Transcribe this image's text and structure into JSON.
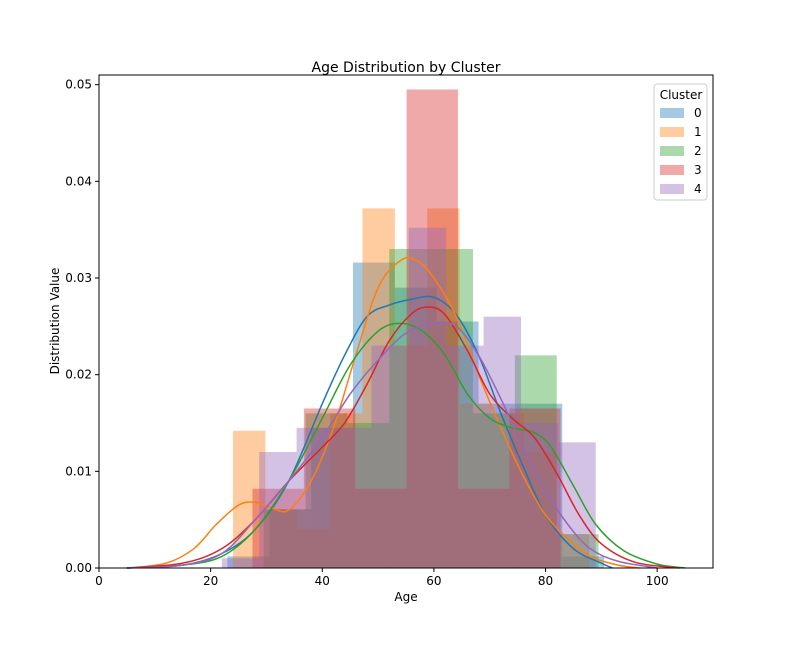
{
  "chart_data": {
    "type": "histogram",
    "title": "Age Distribution by Cluster",
    "xlabel": "Age",
    "ylabel": "Distribution Value",
    "xlim": [
      0,
      110
    ],
    "ylim": [
      0,
      0.051
    ],
    "xticks": [
      "0",
      "20",
      "40",
      "60",
      "80",
      "100"
    ],
    "yticks": [
      "0.00",
      "0.01",
      "0.02",
      "0.03",
      "0.04",
      "0.05"
    ],
    "legend": {
      "title": "Cluster",
      "position": "top-right"
    },
    "grid": false,
    "series": [
      {
        "name": "0",
        "color": "#1f77b4",
        "bins": [
          {
            "x0": 23,
            "x1": 30.5,
            "y": 0.0012
          },
          {
            "x0": 30.5,
            "x1": 38,
            "y": 0.0061
          },
          {
            "x0": 38,
            "x1": 45.5,
            "y": 0.0145
          },
          {
            "x0": 45.5,
            "x1": 53,
            "y": 0.0316
          },
          {
            "x0": 53,
            "x1": 60.5,
            "y": 0.029
          },
          {
            "x0": 60.5,
            "x1": 68,
            "y": 0.0255
          },
          {
            "x0": 68,
            "x1": 75.5,
            "y": 0.017
          },
          {
            "x0": 75.5,
            "x1": 83,
            "y": 0.017
          },
          {
            "x0": 83,
            "x1": 90.5,
            "y": 0.0012
          }
        ],
        "kde": [
          [
            5,
            0
          ],
          [
            15,
            0.0003
          ],
          [
            22,
            0.0015
          ],
          [
            28,
            0.004
          ],
          [
            34,
            0.009
          ],
          [
            40,
            0.017
          ],
          [
            44,
            0.022
          ],
          [
            48,
            0.026
          ],
          [
            52,
            0.0272
          ],
          [
            56,
            0.0278
          ],
          [
            60,
            0.028
          ],
          [
            64,
            0.0262
          ],
          [
            68,
            0.022
          ],
          [
            72,
            0.016
          ],
          [
            76,
            0.0105
          ],
          [
            80,
            0.0055
          ],
          [
            85,
            0.002
          ],
          [
            90,
            0.0005
          ],
          [
            92,
            0
          ]
        ]
      },
      {
        "name": "1",
        "color": "#ff7f0e",
        "bins": [
          {
            "x0": 24,
            "x1": 29.8,
            "y": 0.0142
          },
          {
            "x0": 29.8,
            "x1": 35.6,
            "y": 0.0061
          },
          {
            "x0": 35.6,
            "x1": 41.4,
            "y": 0.004
          },
          {
            "x0": 41.4,
            "x1": 47.2,
            "y": 0.016
          },
          {
            "x0": 47.2,
            "x1": 53,
            "y": 0.0372
          },
          {
            "x0": 53,
            "x1": 58.8,
            "y": 0.023
          },
          {
            "x0": 58.8,
            "x1": 64.6,
            "y": 0.0372
          },
          {
            "x0": 64.6,
            "x1": 70.4,
            "y": 0.017
          },
          {
            "x0": 70.4,
            "x1": 76.2,
            "y": 0.016
          },
          {
            "x0": 76.2,
            "x1": 82,
            "y": 0.012
          },
          {
            "x0": 82,
            "x1": 87.8,
            "y": 0.0035
          }
        ],
        "kde": [
          [
            5,
            0
          ],
          [
            12,
            0.0005
          ],
          [
            17,
            0.002
          ],
          [
            21,
            0.0045
          ],
          [
            25,
            0.0065
          ],
          [
            28,
            0.0068
          ],
          [
            31,
            0.0062
          ],
          [
            34,
            0.006
          ],
          [
            38,
            0.009
          ],
          [
            42,
            0.0145
          ],
          [
            46,
            0.022
          ],
          [
            50,
            0.029
          ],
          [
            54,
            0.0318
          ],
          [
            57,
            0.0318
          ],
          [
            60,
            0.03
          ],
          [
            64,
            0.026
          ],
          [
            68,
            0.02
          ],
          [
            72,
            0.0145
          ],
          [
            76,
            0.0095
          ],
          [
            80,
            0.0055
          ],
          [
            84,
            0.003
          ],
          [
            88,
            0.0012
          ],
          [
            93,
            0.0003
          ],
          [
            97,
            0
          ]
        ]
      },
      {
        "name": "2",
        "color": "#2ca02c",
        "bins": [
          {
            "x0": 29.5,
            "x1": 37,
            "y": 0.006
          },
          {
            "x0": 37,
            "x1": 44.5,
            "y": 0.016
          },
          {
            "x0": 44.5,
            "x1": 52,
            "y": 0.015
          },
          {
            "x0": 52,
            "x1": 59.5,
            "y": 0.033
          },
          {
            "x0": 59.5,
            "x1": 67,
            "y": 0.033
          },
          {
            "x0": 67,
            "x1": 74.5,
            "y": 0.016
          },
          {
            "x0": 74.5,
            "x1": 82,
            "y": 0.022
          },
          {
            "x0": 82,
            "x1": 89.5,
            "y": 0.0035
          }
        ],
        "kde": [
          [
            5,
            0
          ],
          [
            15,
            0.0003
          ],
          [
            22,
            0.0012
          ],
          [
            28,
            0.004
          ],
          [
            34,
            0.009
          ],
          [
            40,
            0.0155
          ],
          [
            45,
            0.021
          ],
          [
            50,
            0.0245
          ],
          [
            54,
            0.0253
          ],
          [
            58,
            0.0245
          ],
          [
            62,
            0.022
          ],
          [
            66,
            0.018
          ],
          [
            70,
            0.0155
          ],
          [
            74,
            0.0145
          ],
          [
            78,
            0.014
          ],
          [
            81,
            0.0125
          ],
          [
            85,
            0.0085
          ],
          [
            89,
            0.0045
          ],
          [
            94,
            0.0018
          ],
          [
            100,
            0.0004
          ],
          [
            105,
            0
          ]
        ]
      },
      {
        "name": "3",
        "color": "#d62728",
        "bins": [
          {
            "x0": 27.5,
            "x1": 36.7,
            "y": 0.0082
          },
          {
            "x0": 36.7,
            "x1": 45.9,
            "y": 0.0165
          },
          {
            "x0": 45.9,
            "x1": 55.1,
            "y": 0.0082
          },
          {
            "x0": 55.1,
            "x1": 64.3,
            "y": 0.0495
          },
          {
            "x0": 64.3,
            "x1": 73.5,
            "y": 0.0082
          },
          {
            "x0": 73.5,
            "x1": 82.7,
            "y": 0.0165
          }
        ],
        "kde": [
          [
            5,
            0
          ],
          [
            15,
            0.0005
          ],
          [
            22,
            0.002
          ],
          [
            28,
            0.005
          ],
          [
            34,
            0.009
          ],
          [
            40,
            0.0125
          ],
          [
            44,
            0.015
          ],
          [
            48,
            0.019
          ],
          [
            52,
            0.0235
          ],
          [
            56,
            0.0263
          ],
          [
            59,
            0.027
          ],
          [
            62,
            0.0262
          ],
          [
            66,
            0.0225
          ],
          [
            70,
            0.018
          ],
          [
            74,
            0.0155
          ],
          [
            78,
            0.0135
          ],
          [
            82,
            0.0098
          ],
          [
            86,
            0.0055
          ],
          [
            90,
            0.0025
          ],
          [
            96,
            0.0006
          ],
          [
            104,
            0
          ]
        ]
      },
      {
        "name": "4",
        "color": "#9467bd",
        "bins": [
          {
            "x0": 22,
            "x1": 28.7,
            "y": 0.001
          },
          {
            "x0": 28.7,
            "x1": 35.4,
            "y": 0.012
          },
          {
            "x0": 35.4,
            "x1": 42.1,
            "y": 0.0145
          },
          {
            "x0": 42.1,
            "x1": 48.8,
            "y": 0.0145
          },
          {
            "x0": 48.8,
            "x1": 55.5,
            "y": 0.023
          },
          {
            "x0": 55.5,
            "x1": 62.2,
            "y": 0.0352
          },
          {
            "x0": 62.2,
            "x1": 68.9,
            "y": 0.023
          },
          {
            "x0": 68.9,
            "x1": 75.6,
            "y": 0.026
          },
          {
            "x0": 75.6,
            "x1": 82.3,
            "y": 0.015
          },
          {
            "x0": 82.3,
            "x1": 89,
            "y": 0.013
          }
        ],
        "kde": [
          [
            5,
            0
          ],
          [
            15,
            0.0003
          ],
          [
            22,
            0.0015
          ],
          [
            28,
            0.005
          ],
          [
            34,
            0.009
          ],
          [
            40,
            0.0135
          ],
          [
            45,
            0.018
          ],
          [
            50,
            0.0215
          ],
          [
            55,
            0.0243
          ],
          [
            60,
            0.0253
          ],
          [
            64,
            0.025
          ],
          [
            68,
            0.022
          ],
          [
            72,
            0.0175
          ],
          [
            76,
            0.0125
          ],
          [
            80,
            0.008
          ],
          [
            84,
            0.0045
          ],
          [
            88,
            0.002
          ],
          [
            93,
            0.0007
          ],
          [
            100,
            0
          ]
        ]
      }
    ]
  }
}
